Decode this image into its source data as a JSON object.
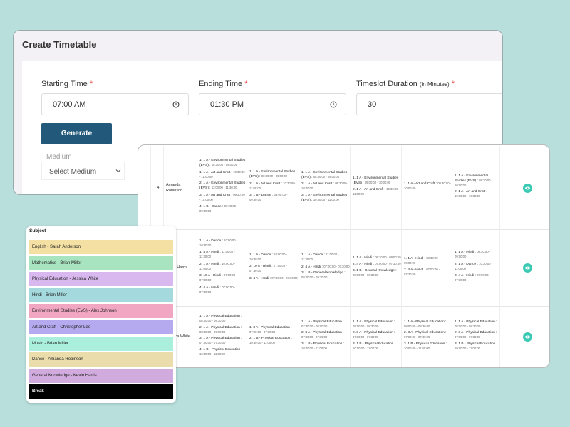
{
  "form": {
    "title": "Create Timetable",
    "fields": [
      {
        "label": "Starting Time",
        "required": "*",
        "value": "07:00 AM"
      },
      {
        "label": "Ending Time",
        "required": "*",
        "value": "01:30 PM"
      },
      {
        "label": "Timeslot Duration",
        "hint": "(in Minutes)",
        "required": "*",
        "value": "30"
      }
    ],
    "button": "Generate",
    "medium": {
      "label": "Medium",
      "placeholder": "Select Medium"
    }
  },
  "table": {
    "rows": [
      {
        "index": "4",
        "name": "Amanda Robinson",
        "cells": [
          [
            [
              "1. 1 A - Environmental Studies (EVS) :",
              "08:30:00 - 09:00:00"
            ],
            [
              "1. 1 A - Art and Craft :",
              "10:30:00 - 11:00:00"
            ],
            [
              "2. 1 A - Environmental Studies (EVS) :",
              "11:00:00 - 11:30:00"
            ],
            [
              "3. 1 A - Art and Craft :",
              "09:30:00 - 10:00:00"
            ],
            [
              "4. 1 B - Dance :",
              "09:00:00 - 09:30:00"
            ]
          ],
          [
            [
              "1. 1 A - Environmental Studies (EVS) :",
              "08:30:00 - 09:00:00"
            ],
            [
              "2. 1 A - Art and Craft :",
              "10:30:00 - 11:00:00"
            ],
            [
              "3. 1 B - Dance :",
              "09:00:00 - 09:30:00"
            ]
          ],
          [
            [
              "1. 1 A - Environmental Studies (EVS) :",
              "08:30:00 - 09:00:00"
            ],
            [
              "2. 1 A - Art and Craft :",
              "09:30:00 - 10:00:00"
            ],
            [
              "3. 1 A - Environmental Studies (EVS) :",
              "10:30:00 - 11:00:00"
            ]
          ],
          [
            [
              "1. 1 A - Environmental Studies (EVS) :",
              "09:00:00 - 10:00:00"
            ],
            [
              "2. 1 A - Art and Craft :",
              "10:30:00 - 11:00:00"
            ]
          ],
          [
            [
              "1. 1 A - Art and Craft :",
              "09:30:00 - 10:00:00"
            ]
          ],
          [
            [
              "1. 1 A - Environmental Studies (EVS) :",
              "09:30:00 - 10:00:00"
            ],
            [
              "2. 1 A - Art and Craft :",
              "10:00:00 - 10:30:00"
            ]
          ]
        ]
      },
      {
        "name": "Kevin Harris",
        "cells": [
          [
            [
              "1. 1 A - Dance :",
              "10:00:00 - 10:30:00"
            ],
            [
              "1. 4 A - Hindi :",
              "11:00:00 - 11:30:00"
            ],
            [
              "2. 1 A - Hindi :",
              "10:00:00 - 11:00:00"
            ],
            [
              "3. 10 A - Hindi :",
              "07:00:00 - 07:30:00"
            ],
            [
              "4. 4 A - Hindi :",
              "07:00:00 - 07:30:00"
            ]
          ],
          [
            [
              "1. 1 A - Dance :",
              "10:00:00 - 10:30:00"
            ],
            [
              "2. 10 A - Hindi :",
              "07:00:00 - 07:30:00"
            ],
            [
              "3. 4 A - Hindi :",
              "07:00:00 - 07:30:00"
            ]
          ],
          [
            [
              "1. 1 A - Dance :",
              "11:00:00 - 11:30:00"
            ],
            [
              "2. 4 A - Hindi :",
              "07:00:00 - 07:30:00"
            ],
            [
              "3. 1 B - General Knowledge :",
              "09:00:00 - 09:30:00"
            ]
          ],
          [
            [
              "1. 1 A - Hindi :",
              "08:30:00 - 09:00:00"
            ],
            [
              "2. 4 A - Hindi :",
              "07:00:00 - 07:30:00"
            ],
            [
              "3. 1 B - General Knowledge :",
              "08:00:00 - 08:30:00"
            ]
          ],
          [
            [
              "1. 1 A - Hindi :",
              "08:30:00 - 09:00:00"
            ],
            [
              "2. 4 A - Hindi :",
              "07:00:00 - 07:30:00"
            ]
          ],
          [
            [
              "1. 1 A - Hindi :",
              "08:30:00 - 09:00:00"
            ],
            [
              "2. 1 A - Dance :",
              "10:30:00 - 11:00:00"
            ],
            [
              "3. 4 A - Hindi :",
              "07:00:00 - 07:30:00"
            ]
          ]
        ]
      },
      {
        "name": "Jessica White",
        "cells": [
          [
            [
              "1. 1 A - Physical Education :",
              "08:00:00 - 08:30:00"
            ],
            [
              "2. 1 A - Physical Education :",
              "08:30:00 - 09:00:00"
            ],
            [
              "3. 1 A - Physical Education :",
              "07:00:00 - 07:30:00"
            ],
            [
              "4. 1 B - Physical Education :",
              "10:30:00 - 11:00:00"
            ]
          ],
          [
            [
              "1. 3 A - Physical Education :",
              "07:00:00 - 07:30:00"
            ],
            [
              "2. 1 B - Physical Education :",
              "10:30:00 - 11:00:00"
            ]
          ],
          [
            [
              "1. 1 A - Physical Education :",
              "07:30:00 - 08:00:00"
            ],
            [
              "2. 3 A - Physical Education :",
              "07:00:00 - 07:30:00"
            ],
            [
              "3. 1 B - Physical Education :",
              "10:00:00 - 11:00:00"
            ]
          ],
          [
            [
              "1. 1 A - Physical Education :",
              "08:00:00 - 08:30:00"
            ],
            [
              "2. 3 A - Physical Education :",
              "07:00:00 - 07:30:00"
            ],
            [
              "3. 1 B - Physical Education :",
              "10:00:00 - 11:00:00"
            ]
          ],
          [
            [
              "1. 1 A - Physical Education :",
              "08:00:00 - 08:30:00"
            ],
            [
              "2. 3 A - Physical Education :",
              "07:00:00 - 07:30:00"
            ],
            [
              "3. 1 B - Physical Education :",
              "10:00:00 - 11:00:00"
            ]
          ],
          [
            [
              "1. 1 A - Physical Education :",
              "08:00:00 - 08:30:00"
            ],
            [
              "2. 3 A - Physical Education :",
              "07:00:00 - 07:30:00"
            ],
            [
              "3. 1 B - Physical Education :",
              "10:00:00 - 11:00:00"
            ]
          ]
        ]
      }
    ]
  },
  "subjects": {
    "title": "Subject",
    "items": [
      {
        "label": "English - Sarah Anderson",
        "color": "#f4e0a2"
      },
      {
        "label": "Mathematics - Brian Miller",
        "color": "#a9e4c0"
      },
      {
        "label": "Physical Education - Jessica White",
        "color": "#d9b8f0"
      },
      {
        "label": "Hindi - Brian Miller",
        "color": "#a4d9dd"
      },
      {
        "label": "Environmental Studies (EVS) - Alex Johnson",
        "color": "#f1a7c1"
      },
      {
        "label": "Art and Craft - Christopher Lee",
        "color": "#b5a9f0"
      },
      {
        "label": "Music - Brian Miller",
        "color": "#aaefdc"
      },
      {
        "label": "Dance - Amanda Robinson",
        "color": "#ebdcab"
      },
      {
        "label": "General Knowledge - Kevin Harris",
        "color": "#d1abdd"
      },
      {
        "label": "Break",
        "color": "#000000"
      }
    ]
  }
}
